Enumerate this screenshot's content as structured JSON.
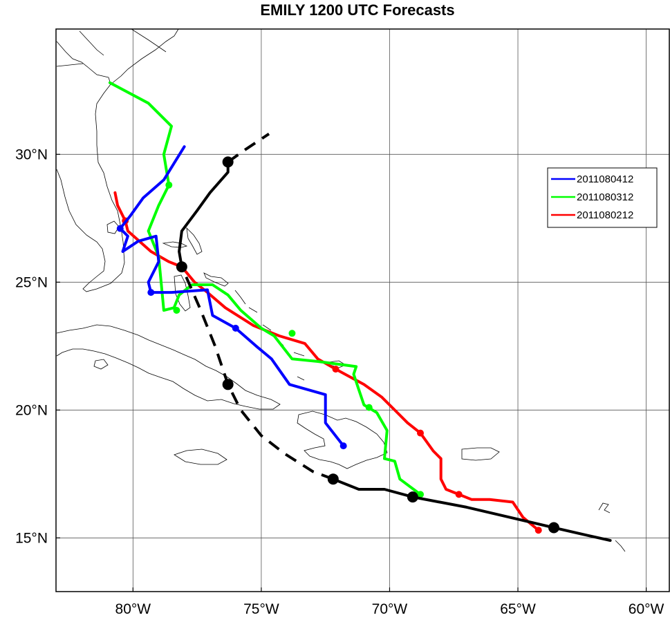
{
  "chart_data": {
    "type": "map-track",
    "title": "EMILY 1200 UTC Forecasts",
    "x_ticks": [
      {
        "lon": -80,
        "label": "80°W"
      },
      {
        "lon": -75,
        "label": "75°W"
      },
      {
        "lon": -70,
        "label": "70°W"
      },
      {
        "lon": -65,
        "label": "65°W"
      },
      {
        "lon": -60,
        "label": "60°W"
      }
    ],
    "y_ticks": [
      {
        "lat": 30,
        "label": "30°N"
      },
      {
        "lat": 25,
        "label": "25°N"
      },
      {
        "lat": 20,
        "label": "20°N"
      },
      {
        "lat": 15,
        "label": "15°N"
      }
    ],
    "lon_range": [
      -83,
      -59.1
    ],
    "lat_range": [
      12.9,
      34.9
    ],
    "grid": true,
    "legend_position": "right",
    "colors": {
      "black": "#000000",
      "blue": "#0000ff",
      "green": "#00ff00",
      "red": "#ff0000"
    },
    "best_track": {
      "color": "#000000",
      "solid_segments": [
        [
          [
            -61.4,
            14.9
          ],
          [
            -62.3,
            15.1
          ],
          [
            -63.6,
            15.4
          ],
          [
            -65.3,
            15.8
          ],
          [
            -67.0,
            16.2
          ],
          [
            -69.1,
            16.6
          ],
          [
            -70.2,
            16.9
          ],
          [
            -71.2,
            16.9
          ],
          [
            -72.2,
            17.3
          ]
        ],
        [
          [
            -78.1,
            25.6
          ],
          [
            -78.2,
            26.2
          ],
          [
            -78.1,
            27.0
          ],
          [
            -77.5,
            27.8
          ],
          [
            -77.0,
            28.5
          ],
          [
            -76.3,
            29.3
          ],
          [
            -76.3,
            29.7
          ]
        ]
      ],
      "dashed_segments": [
        [
          [
            -72.2,
            17.3
          ],
          [
            -73.0,
            17.6
          ],
          [
            -74.1,
            18.3
          ],
          [
            -75.0,
            19.0
          ],
          [
            -75.8,
            20.0
          ],
          [
            -76.3,
            21.0
          ],
          [
            -76.8,
            22.5
          ],
          [
            -77.4,
            24.0
          ],
          [
            -78.1,
            25.6
          ]
        ],
        [
          [
            -76.3,
            29.7
          ],
          [
            -75.6,
            30.2
          ],
          [
            -74.7,
            30.8
          ]
        ]
      ],
      "points": [
        [
          -63.6,
          15.4
        ],
        [
          -69.1,
          16.6
        ],
        [
          -72.2,
          17.3
        ],
        [
          -76.3,
          21.0
        ],
        [
          -78.1,
          25.6
        ],
        [
          -76.3,
          29.7
        ]
      ]
    },
    "series": [
      {
        "name": "2011080412",
        "color": "#0000ff",
        "track": [
          [
            -71.8,
            18.6
          ],
          [
            -72.5,
            19.5
          ],
          [
            -72.5,
            20.6
          ],
          [
            -73.9,
            21.0
          ],
          [
            -74.6,
            22.0
          ],
          [
            -75.2,
            22.5
          ],
          [
            -76.0,
            23.2
          ],
          [
            -76.9,
            23.7
          ],
          [
            -77.1,
            24.7
          ],
          [
            -78.5,
            24.6
          ],
          [
            -78.9,
            24.6
          ],
          [
            -79.3,
            24.6
          ],
          [
            -79.4,
            25.0
          ],
          [
            -79.0,
            25.8
          ],
          [
            -79.1,
            26.8
          ],
          [
            -79.8,
            26.6
          ],
          [
            -80.4,
            26.2
          ],
          [
            -80.2,
            26.8
          ],
          [
            -80.5,
            27.1
          ],
          [
            -80.1,
            27.6
          ],
          [
            -79.6,
            28.3
          ],
          [
            -78.8,
            29.0
          ],
          [
            -78.0,
            30.3
          ]
        ],
        "points": [
          [
            -71.8,
            18.6
          ],
          [
            -76.0,
            23.2
          ],
          [
            -79.3,
            24.6
          ],
          [
            -80.5,
            27.1
          ]
        ]
      },
      {
        "name": "2011080312",
        "color": "#00ff00",
        "track": [
          [
            -68.8,
            16.7
          ],
          [
            -69.6,
            17.3
          ],
          [
            -69.8,
            18.0
          ],
          [
            -70.2,
            18.1
          ],
          [
            -70.1,
            19.2
          ],
          [
            -70.5,
            19.9
          ],
          [
            -71.0,
            20.2
          ],
          [
            -71.2,
            20.8
          ],
          [
            -71.4,
            21.4
          ],
          [
            -71.3,
            21.7
          ],
          [
            -72.8,
            21.9
          ],
          [
            -73.8,
            22.0
          ],
          [
            -74.5,
            22.9
          ],
          [
            -75.0,
            23.2
          ],
          [
            -75.8,
            23.9
          ],
          [
            -76.3,
            24.5
          ],
          [
            -76.9,
            24.9
          ],
          [
            -77.7,
            24.9
          ],
          [
            -78.2,
            24.5
          ],
          [
            -78.4,
            24.0
          ],
          [
            -78.8,
            23.9
          ],
          [
            -79.0,
            26.0
          ],
          [
            -79.4,
            27.0
          ],
          [
            -79.0,
            28.0
          ],
          [
            -78.6,
            28.8
          ],
          [
            -78.8,
            30.0
          ],
          [
            -78.5,
            31.1
          ],
          [
            -79.4,
            32.0
          ],
          [
            -80.9,
            32.8
          ]
        ],
        "points": [
          [
            -68.8,
            16.7
          ],
          [
            -70.8,
            20.1
          ],
          [
            -73.8,
            23.0
          ],
          [
            -78.3,
            23.9
          ],
          [
            -78.6,
            28.8
          ]
        ]
      },
      {
        "name": "2011080212",
        "color": "#ff0000",
        "track": [
          [
            -64.2,
            15.3
          ],
          [
            -64.8,
            15.8
          ],
          [
            -65.2,
            16.4
          ],
          [
            -66.1,
            16.5
          ],
          [
            -66.8,
            16.5
          ],
          [
            -67.3,
            16.7
          ],
          [
            -67.8,
            16.9
          ],
          [
            -68.0,
            17.3
          ],
          [
            -68.0,
            18.1
          ],
          [
            -68.3,
            18.4
          ],
          [
            -68.8,
            19.1
          ],
          [
            -69.3,
            19.5
          ],
          [
            -69.7,
            19.9
          ],
          [
            -70.3,
            20.5
          ],
          [
            -71.0,
            21.0
          ],
          [
            -72.1,
            21.6
          ],
          [
            -72.8,
            22.0
          ],
          [
            -73.3,
            22.6
          ],
          [
            -74.3,
            22.9
          ],
          [
            -75.3,
            23.3
          ],
          [
            -76.4,
            24.0
          ],
          [
            -77.1,
            24.6
          ],
          [
            -77.6,
            25.0
          ],
          [
            -78.1,
            25.6
          ],
          [
            -78.6,
            25.8
          ],
          [
            -79.3,
            26.2
          ],
          [
            -80.2,
            27.0
          ],
          [
            -80.3,
            27.4
          ],
          [
            -80.6,
            28.0
          ],
          [
            -80.7,
            28.5
          ]
        ],
        "points": [
          [
            -64.2,
            15.3
          ],
          [
            -67.3,
            16.7
          ],
          [
            -68.8,
            19.1
          ],
          [
            -72.1,
            21.6
          ],
          [
            -78.1,
            25.6
          ],
          [
            -80.3,
            27.4
          ]
        ]
      }
    ]
  }
}
